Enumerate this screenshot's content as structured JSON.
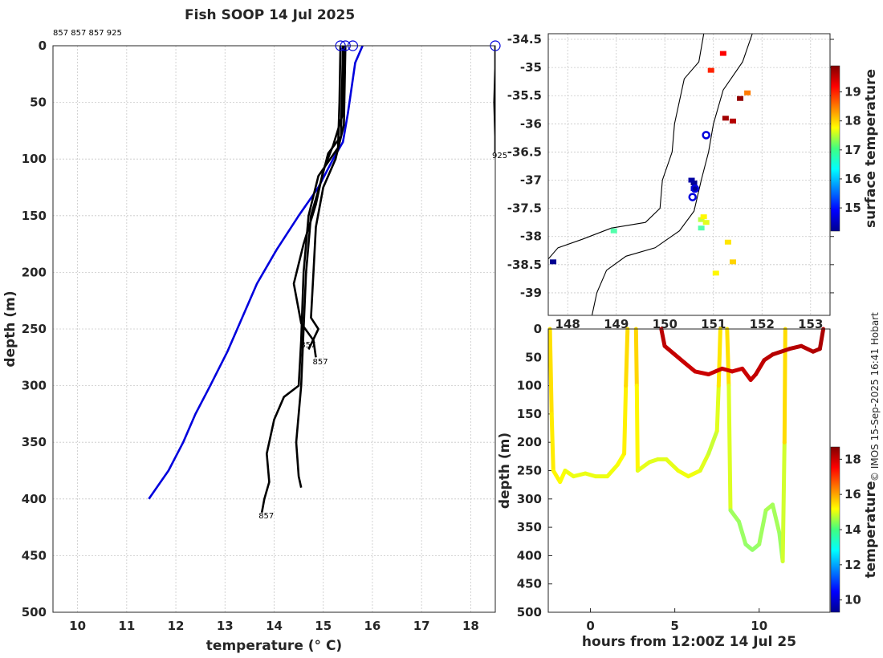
{
  "title": "Fish SOOP 14 Jul 2025",
  "top_annotation": "857 857 857 925",
  "credit": "© IMOS 15-Sep-2025 16:41 Hobart",
  "colors": {
    "profile": "#000000",
    "climatology": "#0000dd",
    "marker": "#0000dd"
  },
  "chart_data": [
    {
      "type": "line",
      "title": "Fish SOOP 14 Jul 2025",
      "xlabel": "temperature (° C)",
      "ylabel": "depth (m)",
      "xlim": [
        9.5,
        18.5
      ],
      "ylim": [
        500,
        0
      ],
      "xticks": [
        10,
        11,
        12,
        13,
        14,
        15,
        16,
        17,
        18
      ],
      "yticks": [
        0,
        50,
        100,
        150,
        200,
        250,
        300,
        350,
        400,
        450,
        500
      ],
      "grid": true,
      "series": [
        {
          "name": "climatology",
          "color": "#0000dd",
          "points": [
            [
              15.8,
              0
            ],
            [
              15.65,
              15
            ],
            [
              15.5,
              60
            ],
            [
              15.4,
              85
            ],
            [
              15.2,
              100
            ],
            [
              14.9,
              125
            ],
            [
              14.5,
              150
            ],
            [
              14.05,
              180
            ],
            [
              13.65,
              210
            ],
            [
              13.35,
              240
            ],
            [
              13.05,
              270
            ],
            [
              12.7,
              300
            ],
            [
              12.4,
              325
            ],
            [
              12.15,
              350
            ],
            [
              11.85,
              375
            ],
            [
              11.45,
              400
            ]
          ]
        },
        {
          "name": "profile 857 a",
          "color": "#000000",
          "points": [
            [
              15.4,
              0
            ],
            [
              15.38,
              40
            ],
            [
              15.36,
              80
            ],
            [
              15.1,
              95
            ],
            [
              14.95,
              120
            ],
            [
              14.75,
              150
            ],
            [
              14.65,
              200
            ],
            [
              14.6,
              250
            ],
            [
              14.55,
              300
            ],
            [
              14.45,
              350
            ],
            [
              14.5,
              380
            ],
            [
              14.55,
              390
            ]
          ]
        },
        {
          "name": "profile 857 b",
          "color": "#000000",
          "points": [
            [
              15.42,
              0
            ],
            [
              15.4,
              60
            ],
            [
              15.2,
              88
            ],
            [
              15.0,
              110
            ],
            [
              14.85,
              140
            ],
            [
              14.6,
              175
            ],
            [
              14.4,
              210
            ],
            [
              14.55,
              245
            ],
            [
              14.8,
              260
            ],
            [
              14.85,
              275
            ]
          ]
        },
        {
          "name": "profile 857 c",
          "color": "#000000",
          "points": [
            [
              15.35,
              0
            ],
            [
              15.33,
              50
            ],
            [
              15.3,
              90
            ],
            [
              14.9,
              115
            ],
            [
              14.7,
              150
            ],
            [
              14.6,
              200
            ],
            [
              14.55,
              260
            ],
            [
              14.5,
              300
            ],
            [
              14.2,
              310
            ],
            [
              14.0,
              330
            ],
            [
              13.85,
              360
            ],
            [
              13.9,
              385
            ],
            [
              13.8,
              400
            ],
            [
              13.75,
              412
            ]
          ]
        },
        {
          "name": "profile 857 d",
          "color": "#000000",
          "points": [
            [
              15.45,
              0
            ],
            [
              15.42,
              70
            ],
            [
              15.25,
              100
            ],
            [
              15.0,
              125
            ],
            [
              14.85,
              160
            ],
            [
              14.8,
              200
            ],
            [
              14.75,
              240
            ],
            [
              14.9,
              250
            ],
            [
              14.7,
              268
            ]
          ]
        },
        {
          "name": "profile 925",
          "color": "#000000",
          "points": [
            [
              18.5,
              0
            ],
            [
              18.5,
              20
            ],
            [
              18.48,
              50
            ],
            [
              18.5,
              80
            ],
            [
              18.5,
              95
            ]
          ]
        }
      ],
      "labels": [
        {
          "text": "857",
          "x": 14.6,
          "y": 262
        },
        {
          "text": "857",
          "x": 14.85,
          "y": 277
        },
        {
          "text": "857",
          "x": 13.75,
          "y": 413
        },
        {
          "text": "925",
          "x": 18.5,
          "y": 95
        }
      ],
      "markers": [
        {
          "x": 15.35,
          "y": 0
        },
        {
          "x": 15.45,
          "y": 0
        },
        {
          "x": 15.6,
          "y": 0
        },
        {
          "x": 18.5,
          "y": 0
        }
      ]
    },
    {
      "type": "scatter",
      "title": "",
      "xlabel": "",
      "ylabel": "",
      "xlim": [
        147.6,
        153.4
      ],
      "ylim": [
        -39.4,
        -34.4
      ],
      "xticks": [
        148,
        149,
        150,
        151,
        152,
        153
      ],
      "xtick_labels": [
        "148",
        "149",
        "150",
        "151",
        "152",
        "153"
      ],
      "yticks": [
        -34.5,
        -35,
        -35.5,
        -36,
        -36.5,
        -37,
        -37.5,
        -38,
        -38.5,
        -39
      ],
      "grid": true,
      "colorbar": {
        "label": "surface temperature",
        "ticks": [
          15,
          16,
          17,
          18,
          19
        ],
        "range": [
          14.2,
          19.9
        ]
      },
      "coastline": [
        [
          147.6,
          -38.4
        ],
        [
          147.8,
          -38.2
        ],
        [
          148.3,
          -38.05
        ],
        [
          148.9,
          -37.85
        ],
        [
          149.6,
          -37.75
        ],
        [
          149.9,
          -37.5
        ],
        [
          149.95,
          -37.0
        ],
        [
          150.15,
          -36.5
        ],
        [
          150.2,
          -36.0
        ],
        [
          150.4,
          -35.2
        ],
        [
          150.7,
          -34.9
        ],
        [
          150.8,
          -34.4
        ]
      ],
      "outline": [
        [
          148.5,
          -39.4
        ],
        [
          148.6,
          -39.0
        ],
        [
          148.8,
          -38.6
        ],
        [
          149.2,
          -38.35
        ],
        [
          149.8,
          -38.2
        ],
        [
          150.3,
          -37.9
        ],
        [
          150.6,
          -37.55
        ],
        [
          150.75,
          -37.0
        ],
        [
          150.9,
          -36.5
        ],
        [
          151.0,
          -36.0
        ],
        [
          151.2,
          -35.4
        ],
        [
          151.6,
          -34.9
        ],
        [
          151.8,
          -34.4
        ]
      ],
      "points": [
        {
          "lon": 150.95,
          "lat": -35.05,
          "t": 19.0
        },
        {
          "lon": 151.25,
          "lat": -35.9,
          "t": 19.7
        },
        {
          "lon": 151.4,
          "lat": -35.95,
          "t": 19.6
        },
        {
          "lon": 151.55,
          "lat": -35.55,
          "t": 19.8
        },
        {
          "lon": 151.7,
          "lat": -35.45,
          "t": 18.5
        },
        {
          "lon": 151.2,
          "lat": -34.75,
          "t": 19.2
        },
        {
          "lon": 148.95,
          "lat": -37.9,
          "t": 16.8
        },
        {
          "lon": 150.75,
          "lat": -37.7,
          "t": 17.4
        },
        {
          "lon": 150.85,
          "lat": -37.75,
          "t": 17.6
        },
        {
          "lon": 150.8,
          "lat": -37.65,
          "t": 17.8
        },
        {
          "lon": 150.75,
          "lat": -37.85,
          "t": 16.8
        },
        {
          "lon": 151.3,
          "lat": -38.1,
          "t": 17.9
        },
        {
          "lon": 151.05,
          "lat": -38.65,
          "t": 17.8
        },
        {
          "lon": 151.4,
          "lat": -38.45,
          "t": 18.0
        },
        {
          "lon": 150.6,
          "lat": -37.05,
          "t": 14.3
        },
        {
          "lon": 150.6,
          "lat": -37.15,
          "t": 14.3
        },
        {
          "lon": 150.55,
          "lat": -37.0,
          "t": 14.4
        },
        {
          "lon": 147.7,
          "lat": -38.45,
          "t": 14.3
        }
      ],
      "markers": [
        {
          "lon": 150.85,
          "lat": -36.2
        },
        {
          "lon": 150.62,
          "lat": -37.15
        },
        {
          "lon": 150.57,
          "lat": -37.3
        }
      ]
    },
    {
      "type": "scatter",
      "title": "",
      "xlabel": "hours from 12:00Z 14 Jul 25",
      "ylabel": "depth (m)",
      "xlim": [
        -2.5,
        14.2
      ],
      "ylim": [
        500,
        0
      ],
      "xticks": [
        0,
        5,
        10
      ],
      "yticks": [
        0,
        50,
        100,
        150,
        200,
        250,
        300,
        350,
        400,
        450,
        500
      ],
      "grid": false,
      "colorbar": {
        "label": "temperature",
        "ticks": [
          10,
          12,
          14,
          16,
          18
        ],
        "range": [
          9.3,
          18.7
        ]
      },
      "series": [
        {
          "name": "dive 1",
          "points": [
            [
              -2.4,
              0,
              15.5
            ],
            [
              -2.3,
              150,
              15.4
            ],
            [
              -2.2,
              250,
              15.3
            ],
            [
              -1.8,
              270,
              15.2
            ],
            [
              -1.5,
              250,
              15.1
            ],
            [
              -1.0,
              260,
              15.0
            ],
            [
              -0.3,
              255,
              15.0
            ],
            [
              0.3,
              260,
              15.0
            ],
            [
              1.0,
              260,
              15.0
            ],
            [
              1.6,
              240,
              15.1
            ],
            [
              2.0,
              220,
              15.2
            ],
            [
              2.1,
              100,
              15.4
            ],
            [
              2.2,
              0,
              15.6
            ]
          ]
        },
        {
          "name": "dive 2",
          "points": [
            [
              2.7,
              0,
              15.6
            ],
            [
              2.75,
              100,
              15.5
            ],
            [
              2.8,
              250,
              15.0
            ],
            [
              3.5,
              235,
              14.9
            ],
            [
              4.0,
              230,
              14.9
            ],
            [
              4.5,
              230,
              14.9
            ],
            [
              5.2,
              250,
              15.0
            ],
            [
              5.8,
              260,
              15.1
            ],
            [
              6.5,
              250,
              15.0
            ],
            [
              7.0,
              220,
              14.8
            ],
            [
              7.5,
              180,
              14.6
            ],
            [
              7.6,
              100,
              15.2
            ],
            [
              7.7,
              0,
              15.6
            ]
          ]
        },
        {
          "name": "dive 3",
          "points": [
            [
              8.1,
              0,
              15.5
            ],
            [
              8.2,
              100,
              15.4
            ],
            [
              8.3,
              320,
              14.3
            ],
            [
              8.8,
              340,
              14.3
            ],
            [
              9.2,
              380,
              14.2
            ],
            [
              9.6,
              390,
              14.2
            ],
            [
              10.0,
              380,
              14.2
            ],
            [
              10.4,
              320,
              14.4
            ],
            [
              10.8,
              310,
              14.4
            ],
            [
              11.2,
              360,
              14.3
            ],
            [
              11.4,
              410,
              14.2
            ],
            [
              11.5,
              200,
              15.3
            ],
            [
              11.55,
              0,
              15.7
            ]
          ]
        },
        {
          "name": "surface",
          "points": [
            [
              4.2,
              0,
              18.2
            ],
            [
              4.4,
              30,
              18.1
            ],
            [
              5.0,
              45,
              18.1
            ],
            [
              5.6,
              60,
              18.0
            ],
            [
              6.2,
              75,
              18.0
            ],
            [
              7.0,
              80,
              18.0
            ],
            [
              7.8,
              70,
              18.0
            ],
            [
              8.4,
              75,
              18.0
            ],
            [
              9.0,
              70,
              18.0
            ],
            [
              9.5,
              90,
              18.0
            ],
            [
              9.8,
              80,
              18.1
            ],
            [
              10.3,
              55,
              18.1
            ],
            [
              10.8,
              45,
              18.2
            ],
            [
              11.8,
              35,
              18.2
            ],
            [
              12.5,
              30,
              18.2
            ],
            [
              13.2,
              40,
              18.2
            ],
            [
              13.6,
              35,
              18.3
            ],
            [
              13.8,
              0,
              18.3
            ]
          ]
        }
      ]
    }
  ]
}
